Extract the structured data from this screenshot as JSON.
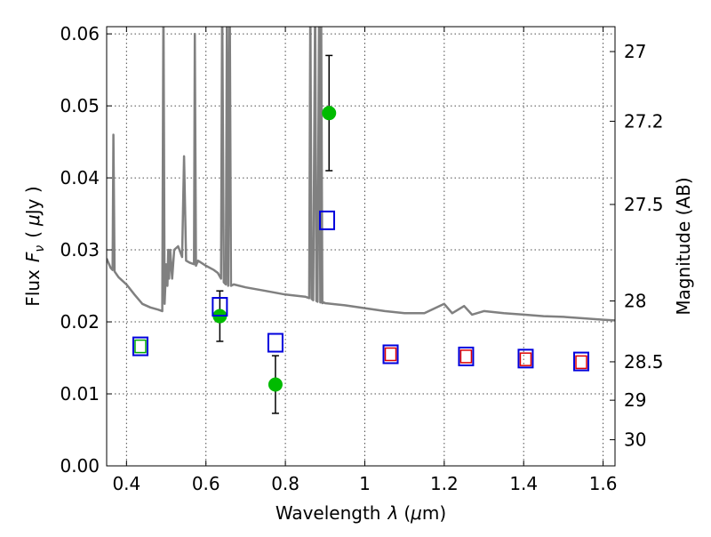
{
  "chart_data": {
    "type": "scatter",
    "xlabel": "Wavelength",
    "xlabel_symbol": "λ",
    "xlabel_unit_open": "(",
    "xlabel_unit_mu": "μ",
    "xlabel_unit_rest": "m)",
    "ylabel": "Flux",
    "ylabel_symbol": "F",
    "ylabel_subscript": "ν",
    "ylabel_unit_open": "(",
    "ylabel_unit_mu": "μ",
    "ylabel_unit_rest": "Jy )",
    "y2label": "Magnitude (AB)",
    "xlim": [
      0.35,
      1.63
    ],
    "ylim": [
      0.0,
      0.061
    ],
    "grid": true,
    "x_ticks": [
      {
        "value": 0.4,
        "label": "0.4"
      },
      {
        "value": 0.6,
        "label": "0.6"
      },
      {
        "value": 0.8,
        "label": "0.8"
      },
      {
        "value": 1.0,
        "label": "1"
      },
      {
        "value": 1.2,
        "label": "1.2"
      },
      {
        "value": 1.4,
        "label": "1.4"
      },
      {
        "value": 1.6,
        "label": "1.6"
      }
    ],
    "y_ticks": [
      {
        "value": 0.0,
        "label": "0.00"
      },
      {
        "value": 0.01,
        "label": "0.01"
      },
      {
        "value": 0.02,
        "label": "0.02"
      },
      {
        "value": 0.03,
        "label": "0.03"
      },
      {
        "value": 0.04,
        "label": "0.04"
      },
      {
        "value": 0.05,
        "label": "0.05"
      },
      {
        "value": 0.06,
        "label": "0.06"
      }
    ],
    "y2_ticks": [
      {
        "value": 27,
        "label": "27"
      },
      {
        "value": 27.2,
        "label": "27.2"
      },
      {
        "value": 27.5,
        "label": "27.5"
      },
      {
        "value": 28,
        "label": "28"
      },
      {
        "value": 28.5,
        "label": "28.5"
      },
      {
        "value": 29,
        "label": "29"
      },
      {
        "value": 30,
        "label": "30"
      }
    ],
    "series": [
      {
        "name": "sed-model",
        "kind": "line",
        "color": "#808080",
        "x": [
          0.35,
          0.36,
          0.365,
          0.367,
          0.37,
          0.38,
          0.4,
          0.42,
          0.44,
          0.46,
          0.48,
          0.49,
          0.493,
          0.496,
          0.5,
          0.503,
          0.505,
          0.507,
          0.51,
          0.515,
          0.52,
          0.53,
          0.54,
          0.545,
          0.55,
          0.56,
          0.57,
          0.572,
          0.575,
          0.58,
          0.6,
          0.62,
          0.63,
          0.638,
          0.641,
          0.645,
          0.65,
          0.653,
          0.656,
          0.66,
          0.663,
          0.67,
          0.7,
          0.75,
          0.8,
          0.85,
          0.86,
          0.863,
          0.866,
          0.87,
          0.875,
          0.878,
          0.881,
          0.885,
          0.888,
          0.89,
          0.893,
          0.897,
          0.9,
          0.95,
          1.0,
          1.05,
          1.1,
          1.15,
          1.2,
          1.22,
          1.25,
          1.27,
          1.3,
          1.35,
          1.4,
          1.45,
          1.5,
          1.55,
          1.6,
          1.63
        ],
        "values": [
          0.0288,
          0.0275,
          0.0272,
          0.046,
          0.027,
          0.0262,
          0.0252,
          0.0238,
          0.0225,
          0.022,
          0.0217,
          0.0215,
          0.065,
          0.0225,
          0.028,
          0.025,
          0.03,
          0.026,
          0.03,
          0.026,
          0.03,
          0.0305,
          0.029,
          0.043,
          0.0285,
          0.0282,
          0.028,
          0.06,
          0.0278,
          0.0285,
          0.0278,
          0.0272,
          0.0268,
          0.026,
          0.065,
          0.0255,
          0.0252,
          0.065,
          0.025,
          0.065,
          0.025,
          0.0252,
          0.0248,
          0.0243,
          0.0238,
          0.0235,
          0.0233,
          0.065,
          0.0232,
          0.023,
          0.065,
          0.0229,
          0.0228,
          0.065,
          0.0227,
          0.065,
          0.0226,
          0.0227,
          0.0226,
          0.0223,
          0.0219,
          0.0215,
          0.0212,
          0.0212,
          0.0225,
          0.0212,
          0.0222,
          0.021,
          0.0215,
          0.0212,
          0.021,
          0.0208,
          0.0207,
          0.0205,
          0.0203,
          0.0202
        ]
      },
      {
        "name": "observed-flux",
        "kind": "points",
        "color": "#00bb00",
        "x": [
          0.635,
          0.775,
          0.91
        ],
        "values": [
          0.0208,
          0.0113,
          0.049
        ],
        "err_low": [
          0.0035,
          0.004,
          0.008
        ],
        "err_high": [
          0.0035,
          0.004,
          0.008
        ]
      },
      {
        "name": "model-band-flux",
        "kind": "open-squares",
        "color": "#0000dd",
        "x": [
          0.435,
          0.635,
          0.775,
          0.905,
          1.065,
          1.255,
          1.405,
          1.545
        ],
        "values": [
          0.0166,
          0.0221,
          0.0171,
          0.0341,
          0.0155,
          0.0152,
          0.0149,
          0.0145
        ]
      },
      {
        "name": "model-band-flux-inner",
        "kind": "inner-squares",
        "x": [
          0.435,
          1.065,
          1.255,
          1.405,
          1.545
        ],
        "values": [
          0.0166,
          0.0155,
          0.0152,
          0.0148,
          0.0144
        ],
        "colors": [
          "#00aa00",
          "#dd0000",
          "#dd0000",
          "#dd0000",
          "#dd0000"
        ]
      }
    ]
  }
}
